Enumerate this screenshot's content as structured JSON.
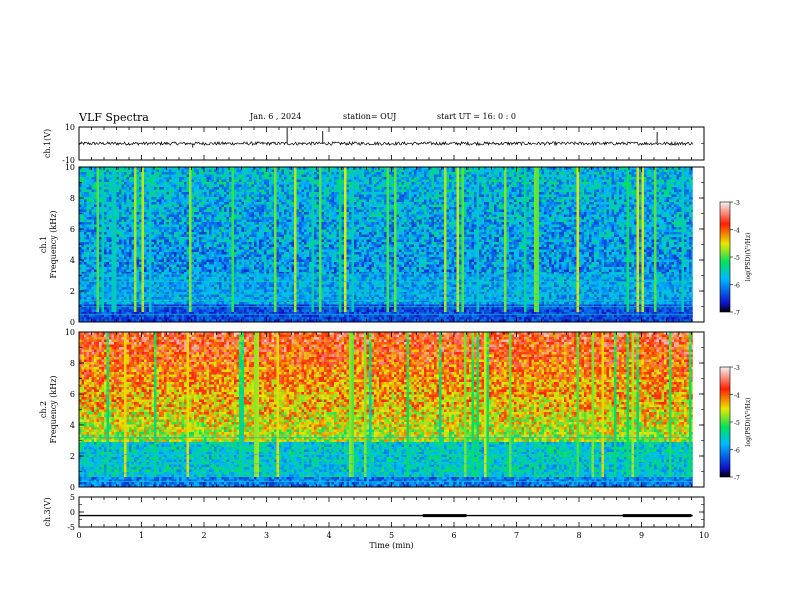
{
  "header": {
    "title": "VLF Spectra",
    "date": "Jan. 6  , 2024",
    "station": "station= OUJ",
    "start": "start  UT =   16: 0  : 0"
  },
  "colors": {
    "waveform": "#000000",
    "colormap": [
      "#000000",
      "#1b1bd8",
      "#00c0ff",
      "#00e060",
      "#e8e800",
      "#ff2000",
      "#f4f4f4"
    ]
  },
  "chart_data": [
    {
      "type": "line",
      "panel": "ch1-waveform",
      "ylabel": "ch.1(V)",
      "ylim": [
        -10,
        10
      ],
      "yticks": [
        "10",
        "-10"
      ],
      "xlim": [
        0,
        10
      ],
      "baseline": 0,
      "noise_amplitude": 1,
      "spikes": [
        {
          "x": 1.82,
          "y": -2.5
        },
        {
          "x": 3.33,
          "y": 9.5
        },
        {
          "x": 3.9,
          "y": 7.5
        },
        {
          "x": 9.25,
          "y": 7.0
        }
      ]
    },
    {
      "type": "heatmap",
      "panel": "ch1-spectrogram",
      "ylabel": "Frequency (kHz)",
      "channel_label": "ch.1",
      "ylim": [
        0,
        10
      ],
      "yticks": [
        "0",
        "2",
        "4",
        "6",
        "8",
        "10"
      ],
      "xlim": [
        0,
        10
      ],
      "zlabel": "log(PSD)(V²/Hz)",
      "zlim": [
        -7,
        -3
      ],
      "zticks": [
        "-3",
        "-4",
        "-5",
        "-6",
        "-7"
      ]
    },
    {
      "type": "heatmap",
      "panel": "ch2-spectrogram",
      "ylabel": "Frequency (kHz)",
      "channel_label": "ch.2",
      "ylim": [
        0,
        10
      ],
      "yticks": [
        "0",
        "2",
        "4",
        "6",
        "8",
        "10"
      ],
      "xlim": [
        0,
        10
      ],
      "zlabel": "log(PSD)(V²/Hz)",
      "zlim": [
        -7,
        -3
      ],
      "zticks": [
        "-3",
        "-4",
        "-5",
        "-6",
        "-7"
      ]
    },
    {
      "type": "line",
      "panel": "ch3-signal",
      "ylabel": "ch.3(V)",
      "ylim": [
        -5,
        5
      ],
      "yticks": [
        "5",
        "0",
        "-5"
      ],
      "xlim": [
        0,
        10
      ],
      "baseline": -1.2,
      "thick_segments": [
        [
          5.5,
          6.2
        ],
        [
          8.7,
          9.8
        ]
      ]
    }
  ],
  "xaxis": {
    "label": "Time  (min)",
    "ticks": [
      "0",
      "1",
      "2",
      "3",
      "4",
      "5",
      "6",
      "7",
      "8",
      "9",
      "10"
    ],
    "data_end": 9.82
  }
}
